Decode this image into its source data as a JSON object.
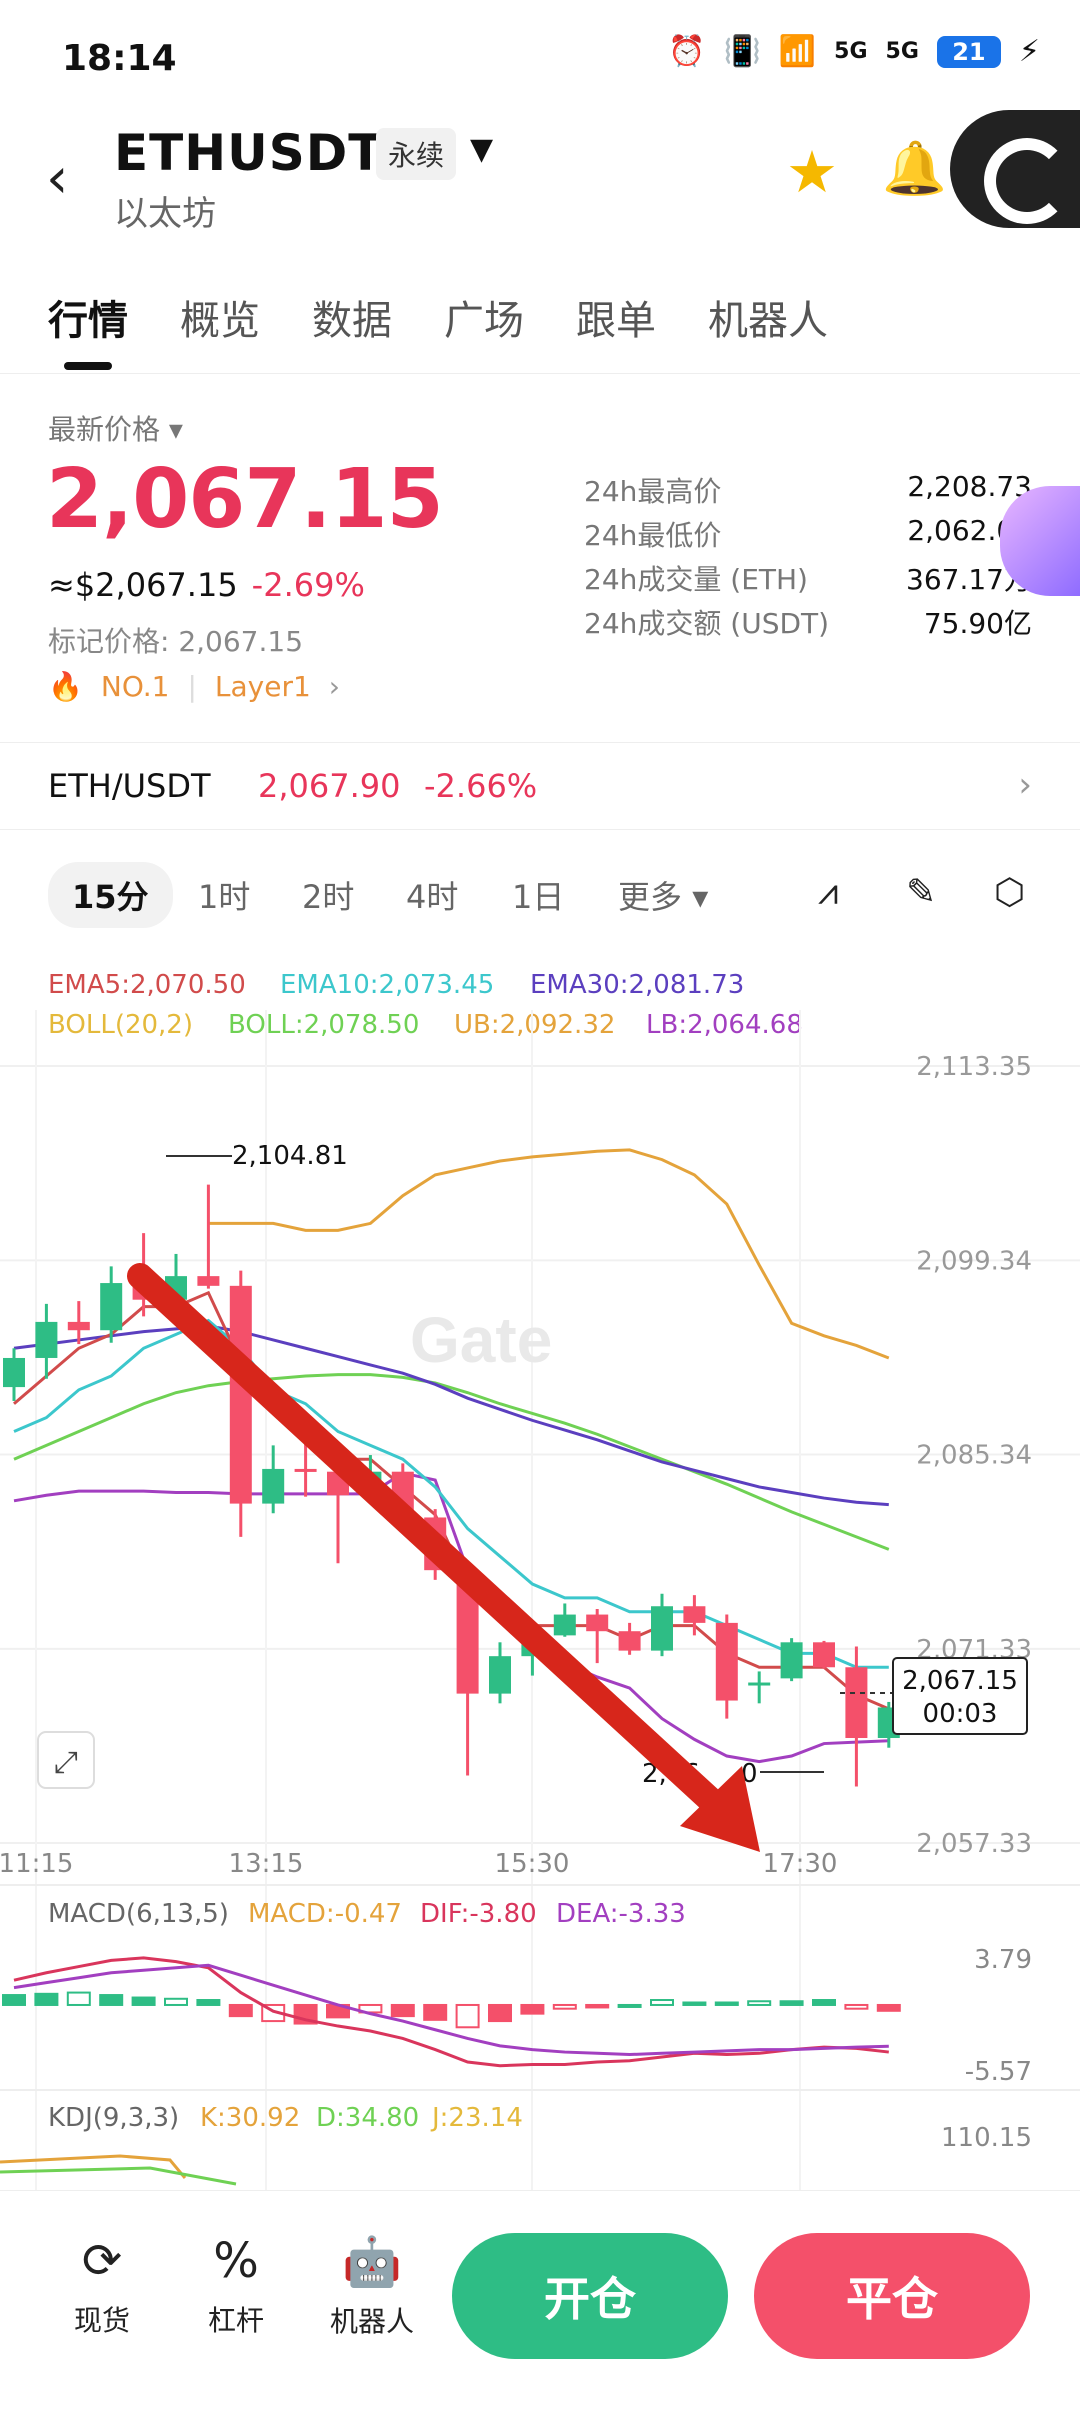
{
  "status": {
    "time": "18:14",
    "battery": "21",
    "net1": "5G",
    "net2": "5G"
  },
  "header": {
    "pair": "ETHUSDT",
    "contract_tag": "永续",
    "name": "以太坊"
  },
  "tabs": [
    "行情",
    "概览",
    "数据",
    "广场",
    "跟单",
    "机器人"
  ],
  "ticker": {
    "latest_label": "最新价格",
    "last_price": "2,067.15",
    "usd_price": "≈$2,067.15",
    "change_pct": "-2.69%",
    "mark_price": "标记价格: 2,067.15",
    "rank_tag": "NO.1",
    "category_tag": "Layer1",
    "stats": [
      {
        "label": "24h最高价",
        "value": "2,208.73"
      },
      {
        "label": "24h最低价",
        "value": "2,062.00"
      },
      {
        "label": "24h成交量 (ETH)",
        "value": "367.17万"
      },
      {
        "label": "24h成交额 (USDT)",
        "value": "75.90亿"
      }
    ]
  },
  "spot": {
    "symbol": "ETH/USDT",
    "price": "2,067.90",
    "change": "-2.66%"
  },
  "intervals": [
    "15分",
    "1时",
    "2时",
    "4时",
    "1日",
    "更多"
  ],
  "chart_data": {
    "type": "candlestick",
    "indicators": {
      "ema5": "EMA5:2,070.50",
      "ema10": "EMA10:2,073.45",
      "ema30": "EMA30:2,081.73",
      "boll_params": "BOLL(20,2)",
      "boll": "BOLL:2,078.50",
      "ub": "UB:2,092.32",
      "lb": "LB:2,064.68"
    },
    "y_ticks": [
      "2,113.35",
      "2,099.34",
      "2,085.34",
      "2,071.33",
      "2,057.33"
    ],
    "x_ticks": [
      "11:15",
      "13:15",
      "15:30",
      "17:30"
    ],
    "high_label": "2,104.81",
    "low_label": "2,06",
    "low_label_tail": "0",
    "current_price": "2,067.15",
    "countdown": "00:03",
    "watermark": "Gate",
    "candles": [
      {
        "o": 2090.2,
        "h": 2093.0,
        "l": 2089.2,
        "c": 2092.3
      },
      {
        "o": 2092.3,
        "h": 2096.2,
        "l": 2090.8,
        "c": 2094.9
      },
      {
        "o": 2094.9,
        "h": 2096.4,
        "l": 2093.3,
        "c": 2094.3
      },
      {
        "o": 2094.3,
        "h": 2098.9,
        "l": 2093.4,
        "c": 2097.7
      },
      {
        "o": 2097.7,
        "h": 2101.3,
        "l": 2095.3,
        "c": 2096.5
      },
      {
        "o": 2096.5,
        "h": 2099.8,
        "l": 2095.5,
        "c": 2098.2
      },
      {
        "o": 2098.2,
        "h": 2104.8,
        "l": 2097.3,
        "c": 2097.5
      },
      {
        "o": 2097.5,
        "h": 2098.6,
        "l": 2079.4,
        "c": 2081.8
      },
      {
        "o": 2081.8,
        "h": 2086.0,
        "l": 2081.1,
        "c": 2084.3
      },
      {
        "o": 2084.3,
        "h": 2086.7,
        "l": 2082.3,
        "c": 2084.1
      },
      {
        "o": 2084.1,
        "h": 2084.8,
        "l": 2077.5,
        "c": 2082.4
      },
      {
        "o": 2082.4,
        "h": 2085.3,
        "l": 2081.8,
        "c": 2084.1
      },
      {
        "o": 2084.1,
        "h": 2084.7,
        "l": 2080.5,
        "c": 2080.8
      },
      {
        "o": 2080.8,
        "h": 2081.4,
        "l": 2076.3,
        "c": 2077.0
      },
      {
        "o": 2077.0,
        "h": 2077.6,
        "l": 2062.2,
        "c": 2068.1
      },
      {
        "o": 2068.1,
        "h": 2071.8,
        "l": 2067.4,
        "c": 2070.8
      },
      {
        "o": 2070.8,
        "h": 2072.6,
        "l": 2069.4,
        "c": 2072.3
      },
      {
        "o": 2072.3,
        "h": 2074.6,
        "l": 2072.2,
        "c": 2073.8
      },
      {
        "o": 2073.8,
        "h": 2074.2,
        "l": 2070.3,
        "c": 2072.6
      },
      {
        "o": 2072.6,
        "h": 2073.2,
        "l": 2070.9,
        "c": 2071.2
      },
      {
        "o": 2071.2,
        "h": 2075.3,
        "l": 2070.8,
        "c": 2074.4
      },
      {
        "o": 2074.4,
        "h": 2075.2,
        "l": 2072.3,
        "c": 2073.2
      },
      {
        "o": 2073.2,
        "h": 2073.8,
        "l": 2066.3,
        "c": 2067.6
      },
      {
        "o": 2068.8,
        "h": 2069.7,
        "l": 2067.4,
        "c": 2068.9
      },
      {
        "o": 2069.2,
        "h": 2072.1,
        "l": 2069.0,
        "c": 2071.8
      },
      {
        "o": 2071.8,
        "h": 2071.9,
        "l": 2069.9,
        "c": 2070.0
      },
      {
        "o": 2070.0,
        "h": 2071.5,
        "l": 2061.4,
        "c": 2064.9
      },
      {
        "o": 2064.9,
        "h": 2067.5,
        "l": 2064.2,
        "c": 2067.1
      }
    ],
    "ema5_line": [
      2089,
      2091,
      2093,
      2094,
      2096,
      2096,
      2097,
      2092,
      2089,
      2087,
      2085,
      2085,
      2083,
      2081,
      2076,
      2074,
      2073,
      2073,
      2073,
      2072,
      2073,
      2073,
      2071,
      2070,
      2070,
      2070,
      2068,
      2067
    ],
    "ema10_line": [
      2087,
      2088,
      2090,
      2091,
      2093,
      2094,
      2095,
      2093,
      2090,
      2089,
      2087,
      2086,
      2085,
      2083,
      2080,
      2078,
      2076,
      2075,
      2075,
      2074,
      2074,
      2074,
      2073,
      2072,
      2071,
      2071,
      2070,
      2070
    ],
    "ema30_line": [
      2093,
      2093.3,
      2093.6,
      2093.9,
      2094.2,
      2094.4,
      2094.6,
      2094.2,
      2093.6,
      2093.0,
      2092.4,
      2091.8,
      2091.2,
      2090.4,
      2089.4,
      2088.6,
      2087.8,
      2087.1,
      2086.4,
      2085.6,
      2084.8,
      2084.2,
      2083.6,
      2083.0,
      2082.6,
      2082.2,
      2081.9,
      2081.73
    ],
    "boll_mid_line": [
      2085,
      2086,
      2087,
      2088,
      2089,
      2089.8,
      2090.3,
      2090.6,
      2090.8,
      2091.0,
      2091.1,
      2091.1,
      2090.9,
      2090.5,
      2089.8,
      2089.0,
      2088.3,
      2087.6,
      2086.8,
      2085.9,
      2085.0,
      2084.1,
      2083.2,
      2082.2,
      2081.2,
      2080.3,
      2079.4,
      2078.5
    ],
    "ub_line": [
      null,
      null,
      null,
      null,
      null,
      null,
      2102,
      2102,
      2102,
      2101.5,
      2101.5,
      2102,
      2104,
      2105.5,
      2106,
      2106.5,
      2106.8,
      2107,
      2107.2,
      2107.3,
      2106.6,
      2105.5,
      2103.4,
      2099.0,
      2094.8,
      2093.9,
      2093.2,
      2092.3
    ],
    "lb_line": [
      2082,
      2082.4,
      2082.7,
      2082.7,
      2082.7,
      2082.6,
      2082.6,
      2082.5,
      2082.5,
      2082.5,
      2082.5,
      2082.5,
      2084,
      2083.5,
      2077.0,
      2075.0,
      2071.5,
      2070.3,
      2069.3,
      2068.5,
      2066.3,
      2064.8,
      2063.6,
      2063.2,
      2063.6,
      2064.5,
      2064.6,
      2064.7
    ],
    "macd": {
      "label": "MACD(6,13,5)",
      "macd": "MACD:-0.47",
      "dif": "DIF:-3.80",
      "dea": "DEA:-3.33",
      "top": "3.79",
      "bottom": "-5.57",
      "hist": [
        0.8,
        0.9,
        1.0,
        0.8,
        0.6,
        0.5,
        0.4,
        -0.9,
        -1.3,
        -1.5,
        -1.0,
        -0.6,
        -0.9,
        -1.2,
        -1.8,
        -1.3,
        -0.7,
        -0.3,
        -0.2,
        0,
        0.4,
        0.2,
        0.2,
        0.3,
        0.3,
        0.4,
        -0.3,
        -0.47
      ],
      "dif_line": [
        2.0,
        2.6,
        3.1,
        3.6,
        3.8,
        3.5,
        3.0,
        1.0,
        -0.5,
        -1.2,
        -1.7,
        -2.1,
        -2.7,
        -3.6,
        -4.6,
        -4.9,
        -4.8,
        -4.8,
        -4.6,
        -4.5,
        -4.2,
        -3.9,
        -4.0,
        -3.9,
        -3.6,
        -3.4,
        -3.5,
        -3.8
      ],
      "dea_line": [
        1.4,
        1.8,
        2.2,
        2.6,
        2.8,
        3.0,
        3.2,
        2.4,
        1.6,
        0.8,
        0,
        -0.7,
        -1.3,
        -2.0,
        -2.7,
        -3.3,
        -3.6,
        -3.8,
        -3.9,
        -4.0,
        -3.9,
        -3.8,
        -3.7,
        -3.6,
        -3.6,
        -3.5,
        -3.4,
        -3.33
      ]
    },
    "kdj": {
      "label": "KDJ(9,3,3)",
      "k": "K:30.92",
      "d": "D:34.80",
      "j": "J:23.14",
      "top": "110.15"
    }
  },
  "colors": {
    "up": "#2ebd85",
    "down": "#f4506a",
    "ema5": "#d14b4b",
    "ema10": "#3cc7cc",
    "ema30": "#5b3fbf",
    "boll": "#6fd154",
    "ub": "#e4a33b",
    "lb": "#a23fc0",
    "accent": "#e8355a"
  },
  "bottom_nav": [
    {
      "label": "现货",
      "icon": "spot-icon"
    },
    {
      "label": "杠杆",
      "icon": "leverage-icon"
    },
    {
      "label": "机器人",
      "icon": "robot-icon"
    }
  ],
  "actions": {
    "open": "开仓",
    "close": "平仓"
  }
}
